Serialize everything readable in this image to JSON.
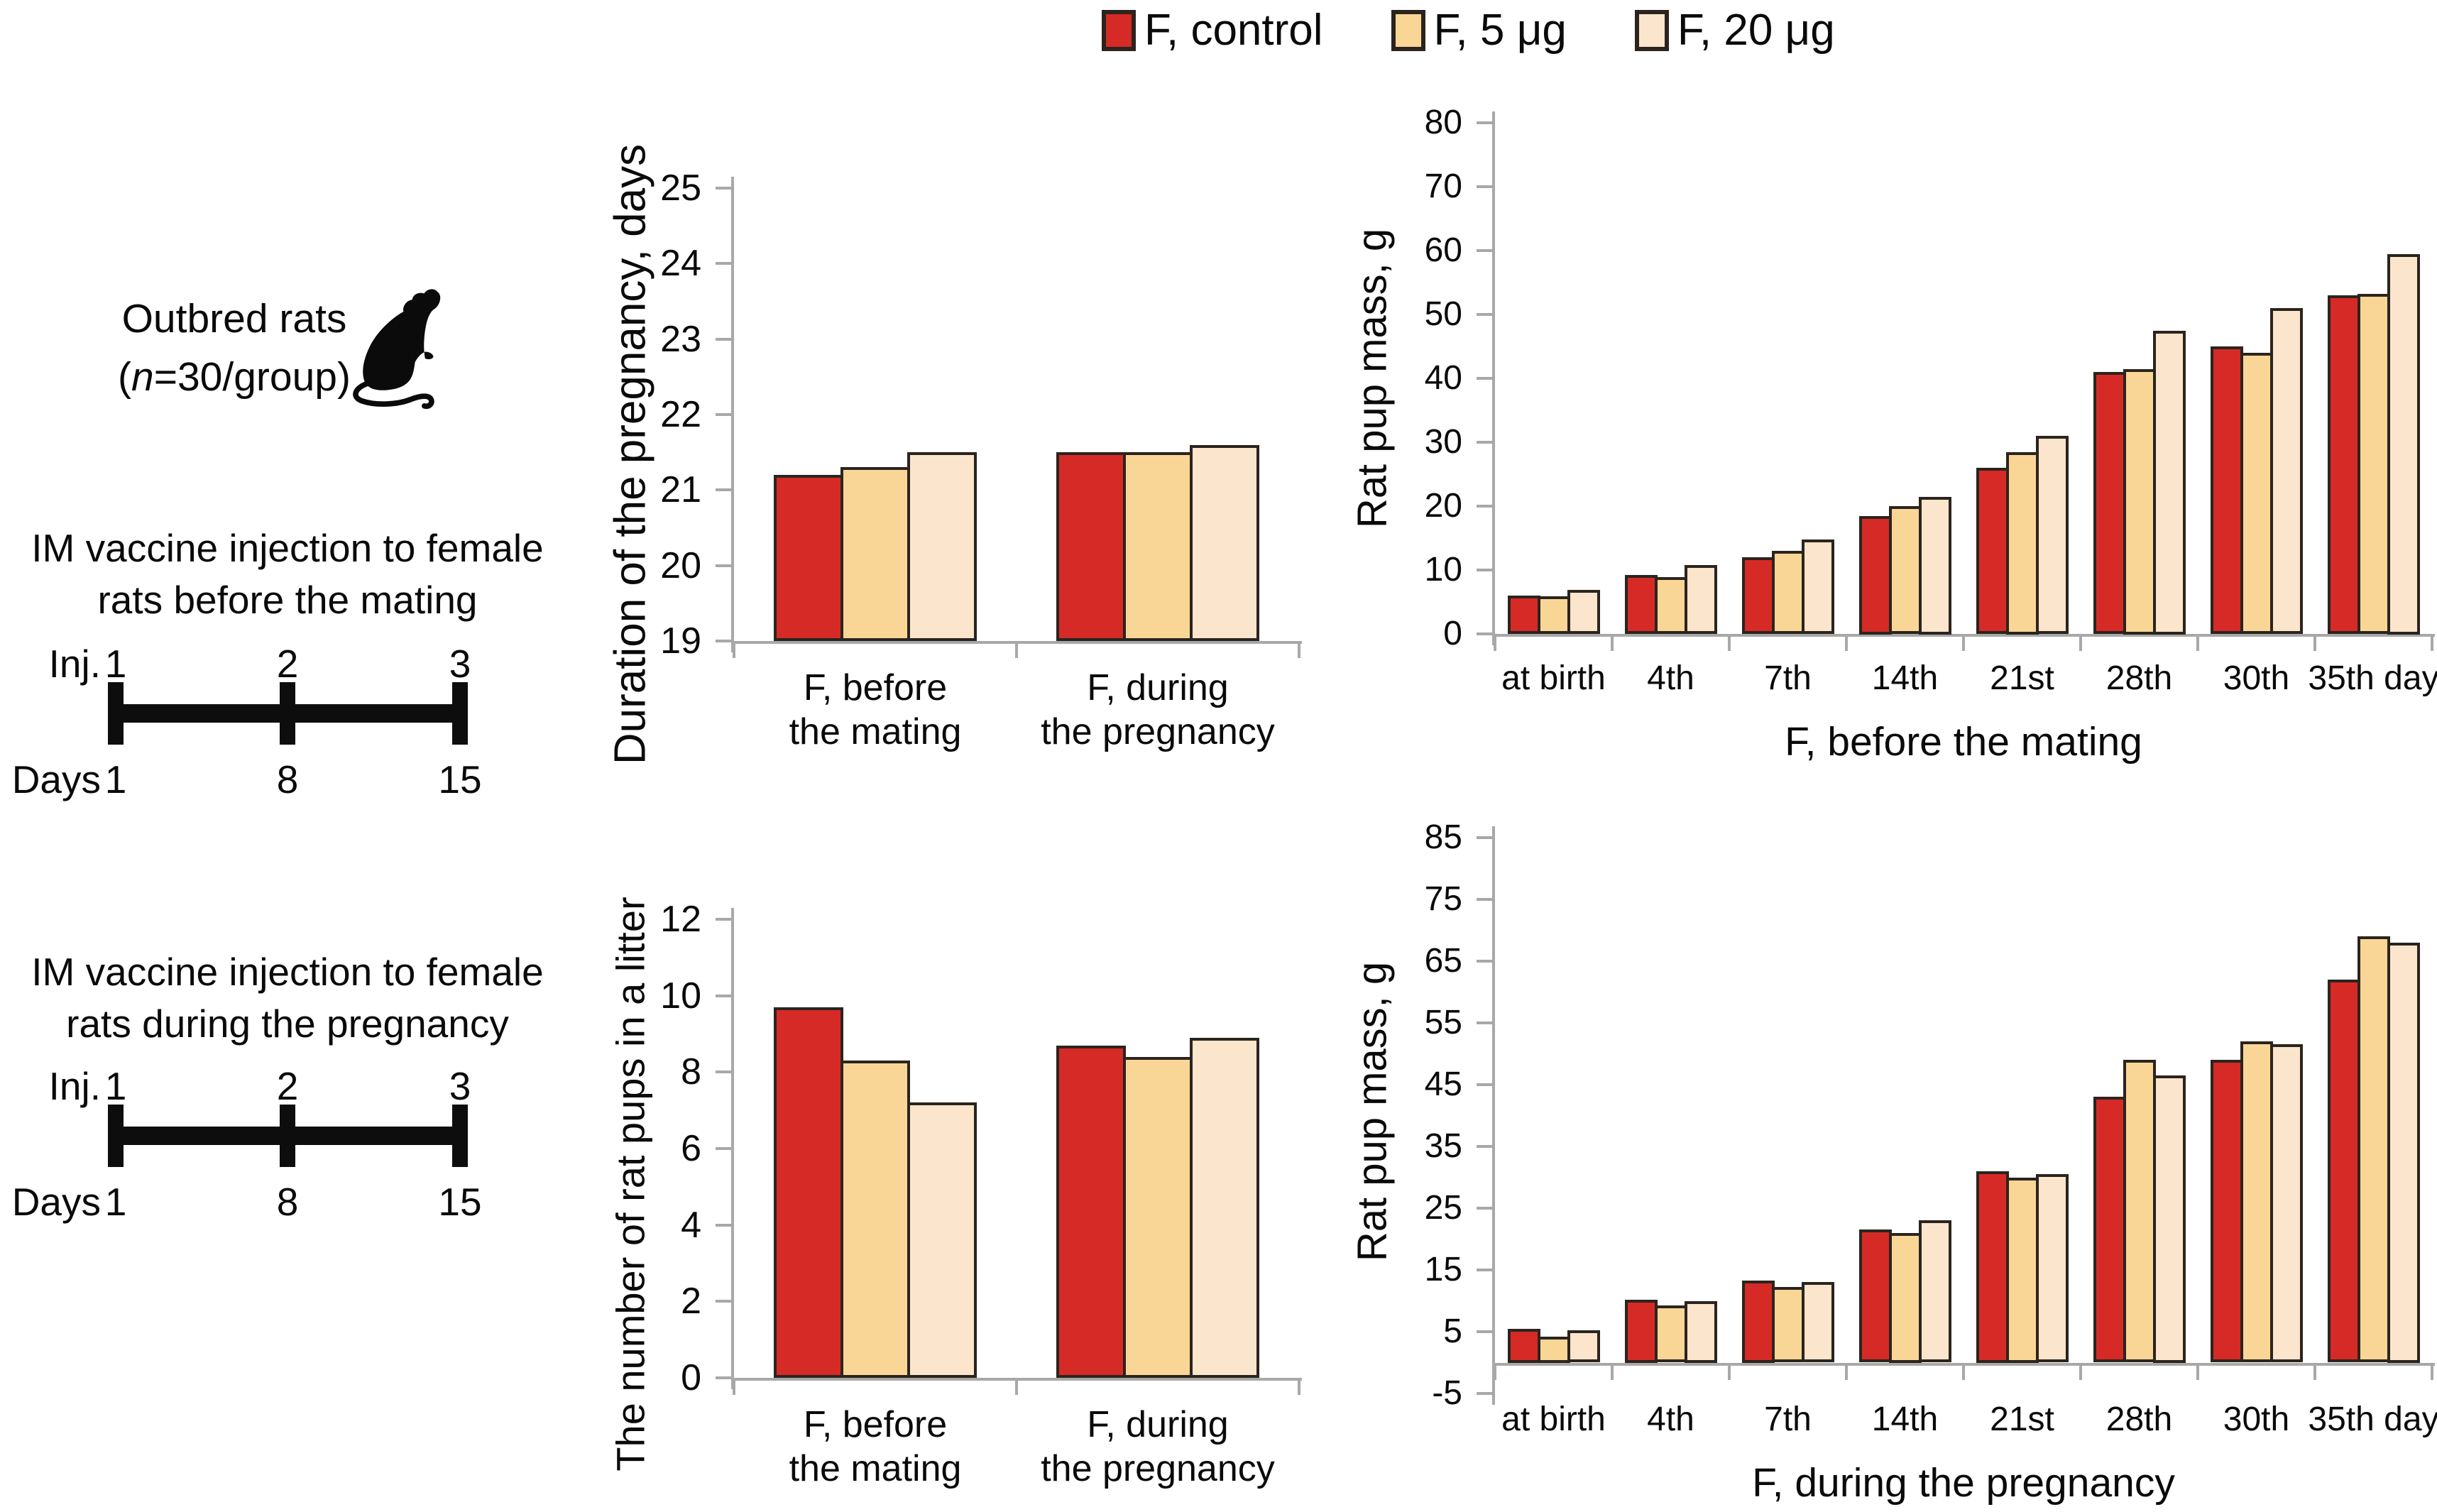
{
  "legend": {
    "items": [
      {
        "label": "F, control",
        "color": "#d62a27"
      },
      {
        "label": "F, 5 μg",
        "color": "#fad696"
      },
      {
        "label": "F, 20 μg",
        "color": "#fbe5cd"
      }
    ]
  },
  "left_panel": {
    "subjects": {
      "line1": "Outbred rats",
      "paren_open": "(",
      "n_italic": "n",
      "rest": "=30/group)"
    },
    "timelines": [
      {
        "title_line1": "IM vaccine injection to female",
        "title_line2": "rats before the mating",
        "inj_label": "Inj.",
        "inj_numbers": [
          "1",
          "2",
          "3"
        ],
        "days_label": "Days",
        "day_numbers": [
          "1",
          "8",
          "15"
        ]
      },
      {
        "title_line1": "IM vaccine injection to female",
        "title_line2": "rats during the pregnancy",
        "inj_label": "Inj.",
        "inj_numbers": [
          "1",
          "2",
          "3"
        ],
        "days_label": "Days",
        "day_numbers": [
          "1",
          "8",
          "15"
        ]
      }
    ]
  },
  "chart_data": [
    {
      "id": "pregnancy-duration",
      "type": "bar",
      "title": "",
      "ylabel": "Duration of the pregnancy, days",
      "xlabel": "",
      "ylim": [
        19,
        25
      ],
      "ytick_step": 1,
      "bar_base_value": 19,
      "grid": false,
      "legend_position": "top-shared",
      "categories": [
        "F, before\nthe mating",
        "F, during\nthe pregnancy"
      ],
      "series": [
        {
          "name": "F, control",
          "color": "#d62a27",
          "values": [
            21.2,
            21.5
          ]
        },
        {
          "name": "F, 5 μg",
          "color": "#fad696",
          "values": [
            21.3,
            21.5
          ]
        },
        {
          "name": "F, 20 μg",
          "color": "#fbe5cd",
          "values": [
            21.5,
            21.6
          ]
        }
      ]
    },
    {
      "id": "pup-mass-before-mating",
      "type": "bar",
      "title": "",
      "ylabel": "Rat pup mass, g",
      "xlabel": "F, before the mating",
      "ylim": [
        0,
        80
      ],
      "ytick_step": 10,
      "bar_base_value": 0,
      "grid": false,
      "legend_position": "top-shared",
      "categories": [
        "at birth",
        "4th",
        "7th",
        "14th",
        "21st",
        "28th",
        "30th",
        "35th day"
      ],
      "series": [
        {
          "name": "F, control",
          "color": "#d62a27",
          "values": [
            6,
            9.2,
            12,
            18.5,
            26,
            41,
            45,
            53
          ]
        },
        {
          "name": "F, 5 μg",
          "color": "#fad696",
          "values": [
            5.9,
            8.9,
            13,
            20,
            28.5,
            41.5,
            44,
            53.2
          ]
        },
        {
          "name": "F, 20 μg",
          "color": "#fbe5cd",
          "values": [
            6.9,
            10.8,
            14.8,
            21.5,
            31,
            47.5,
            51,
            59.5
          ]
        }
      ]
    },
    {
      "id": "litter-size",
      "type": "bar",
      "title": "",
      "ylabel": "The number of rat pups in a litter",
      "xlabel": "",
      "ylim": [
        0,
        12
      ],
      "ytick_step": 2,
      "bar_base_value": 0,
      "grid": false,
      "legend_position": "top-shared",
      "categories": [
        "F, before\nthe mating",
        "F, during\nthe pregnancy"
      ],
      "series": [
        {
          "name": "F, control",
          "color": "#d62a27",
          "values": [
            9.7,
            8.7
          ]
        },
        {
          "name": "F, 5 μg",
          "color": "#fad696",
          "values": [
            8.3,
            8.4
          ]
        },
        {
          "name": "F, 20 μg",
          "color": "#fbe5cd",
          "values": [
            7.2,
            8.9
          ]
        }
      ]
    },
    {
      "id": "pup-mass-during-pregnancy",
      "type": "bar",
      "title": "",
      "ylabel": "Rat pup mass, g",
      "xlabel": "F, during the pregnancy",
      "ylim": [
        -5,
        85
      ],
      "ytick_step": 10,
      "bar_base_value": 0,
      "grid": false,
      "legend_position": "top-shared",
      "categories": [
        "at birth",
        "4th",
        "7th",
        "14th",
        "21st",
        "28th",
        "30th",
        "35th day"
      ],
      "series": [
        {
          "name": "F, control",
          "color": "#d62a27",
          "values": [
            5.5,
            10.2,
            13.3,
            21.5,
            31,
            43,
            49,
            62
          ]
        },
        {
          "name": "F, 5 μg",
          "color": "#fad696",
          "values": [
            4.2,
            9.2,
            12.2,
            21,
            30,
            49,
            52,
            69
          ]
        },
        {
          "name": "F, 20 μg",
          "color": "#fbe5cd",
          "values": [
            5.2,
            10,
            13,
            23,
            30.5,
            46.5,
            51.5,
            68
          ]
        }
      ]
    }
  ]
}
